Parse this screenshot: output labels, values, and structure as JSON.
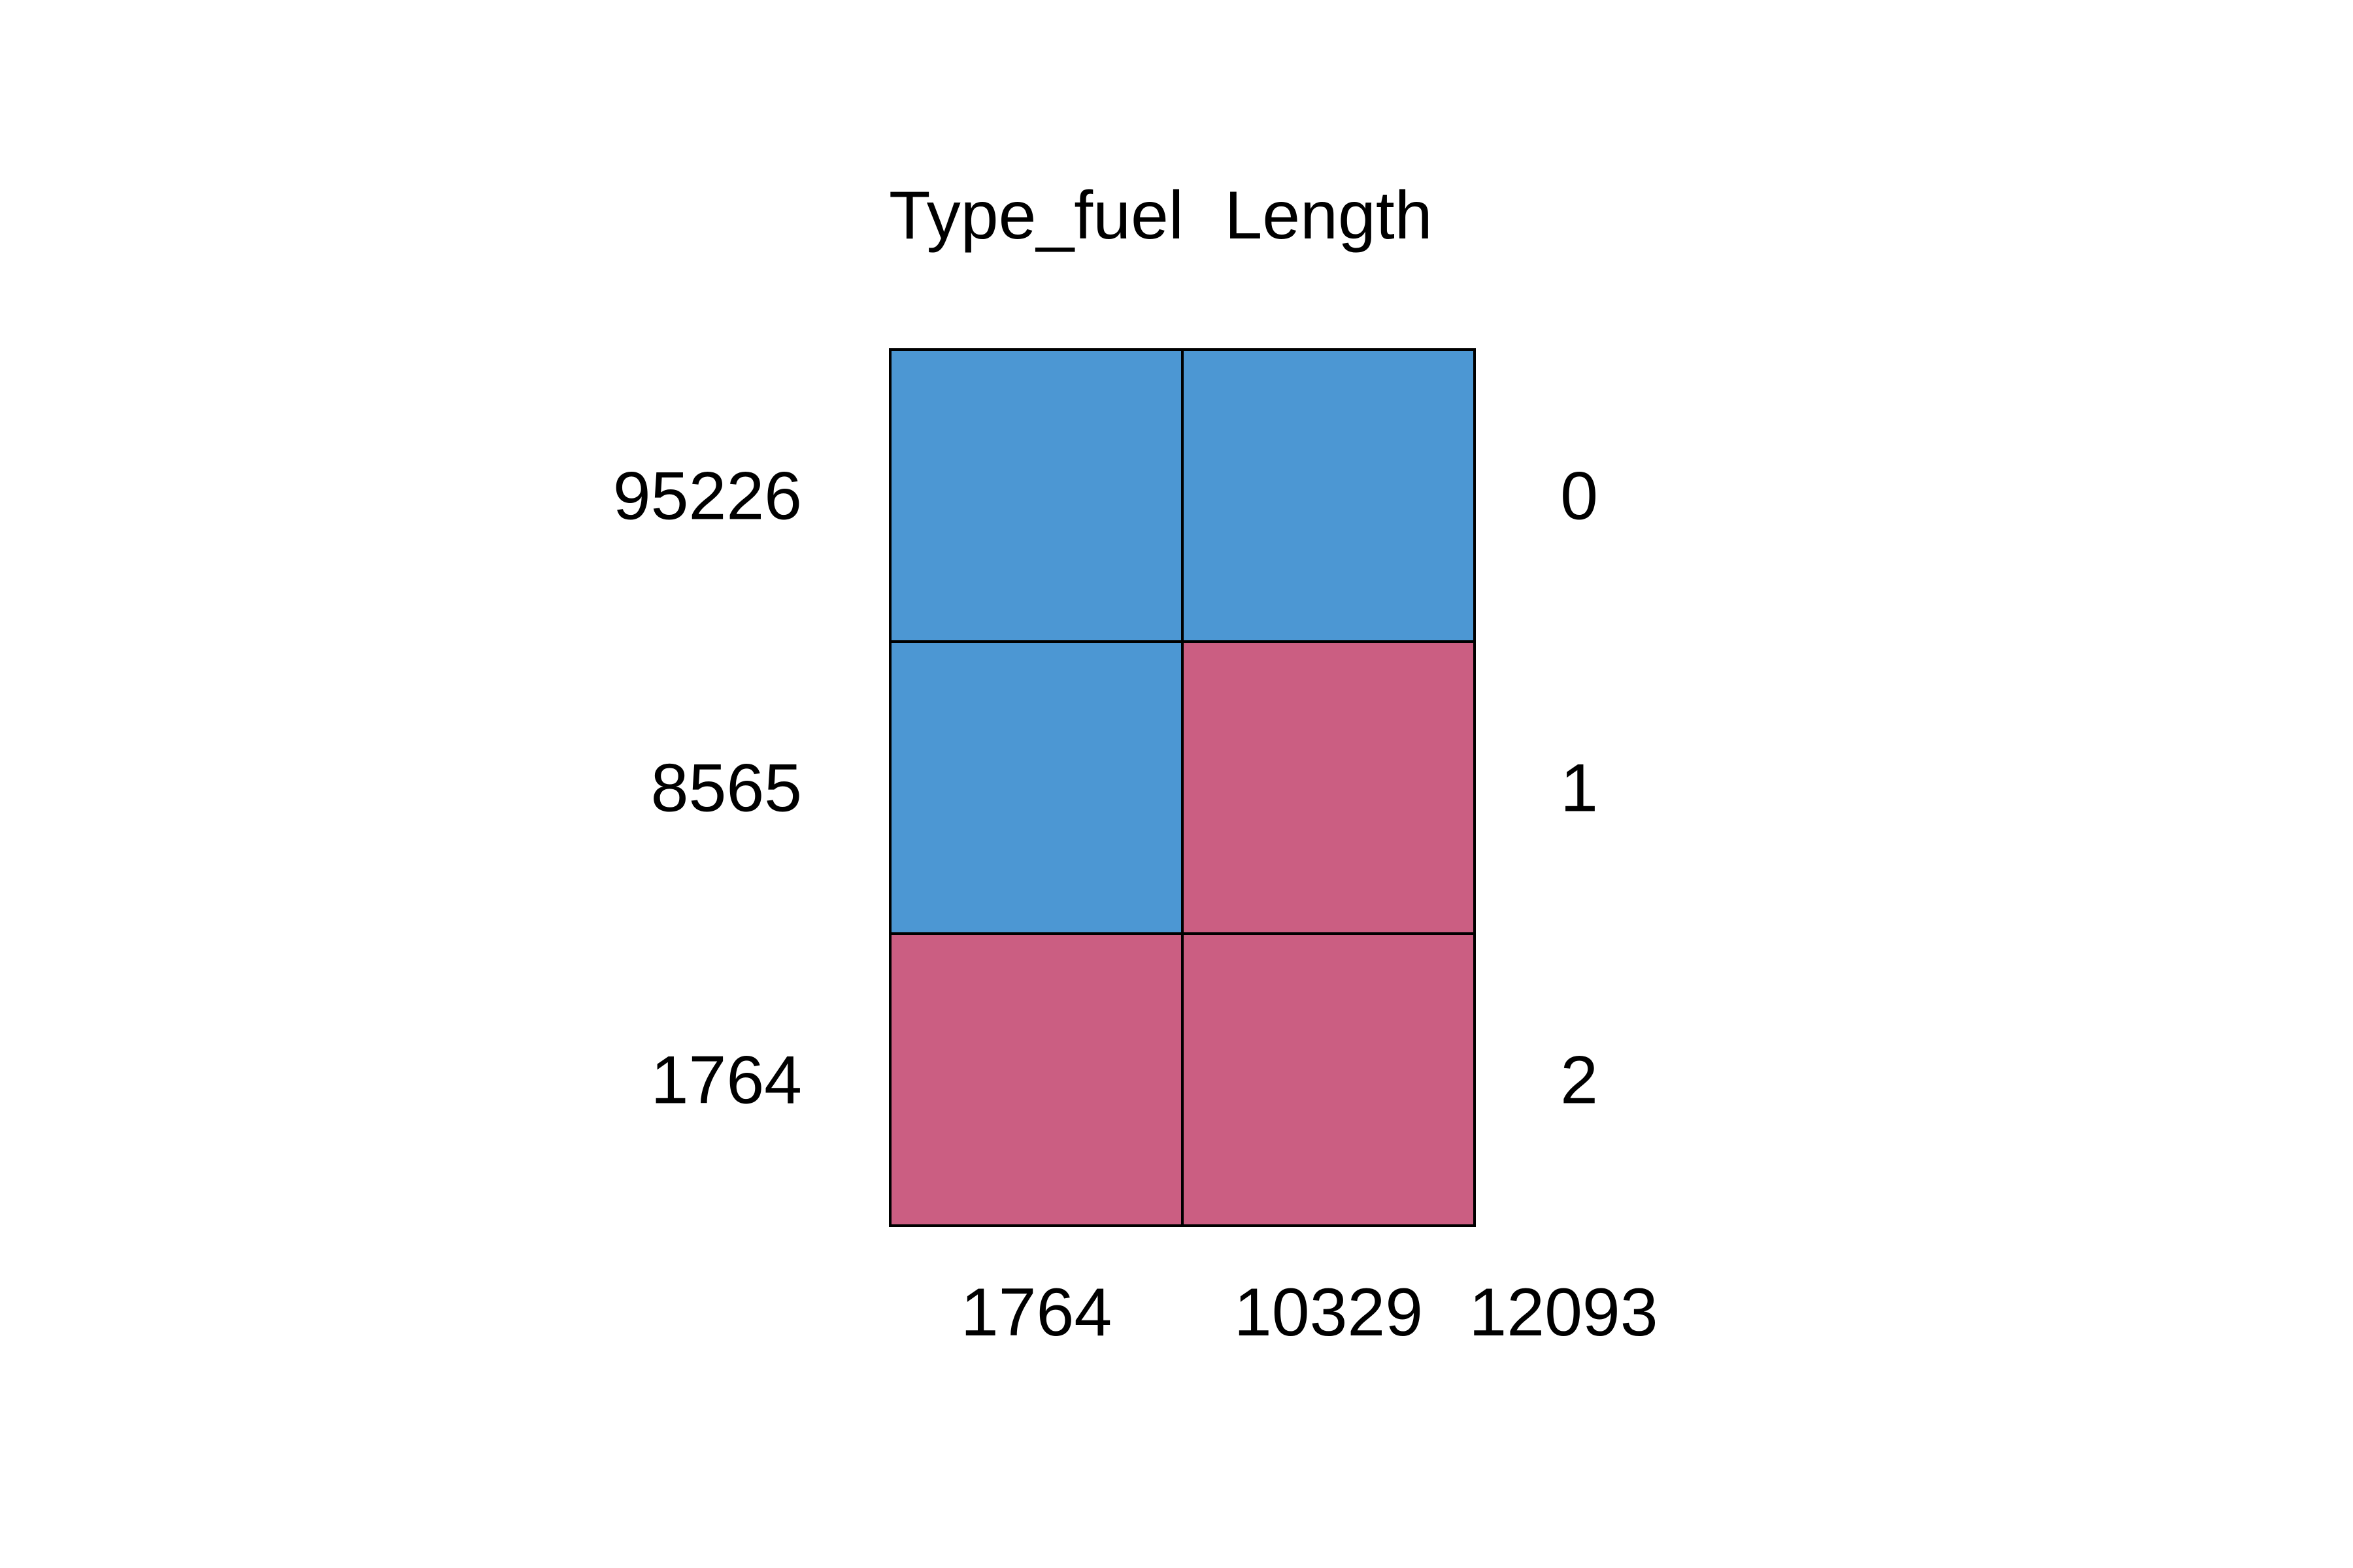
{
  "chart_data": {
    "type": "heatmap",
    "columns": [
      "Type_fuel",
      "Length"
    ],
    "row_counts": [
      "95226",
      "8565",
      "1764"
    ],
    "row_missing_counts": [
      "0",
      "1",
      "2"
    ],
    "column_missing_totals": [
      "1764",
      "10329"
    ],
    "total_missing": "12093",
    "cells": [
      [
        0,
        0
      ],
      [
        0,
        1
      ],
      [
        1,
        1
      ]
    ],
    "colors": {
      "observed": "#4c97d3",
      "missing": "#cb5e82",
      "border": "#000000"
    },
    "legend": "none",
    "grid": "cell borders"
  }
}
